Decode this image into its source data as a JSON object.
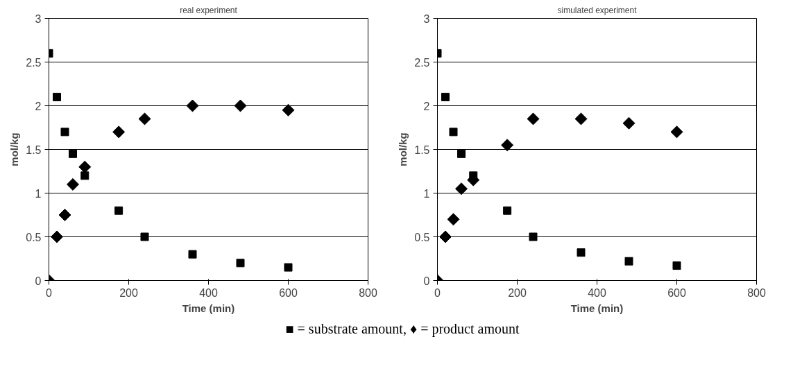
{
  "chart_data": [
    {
      "type": "scatter",
      "title": "real experiment",
      "xlabel": "Time (min)",
      "ylabel": "mol/kg",
      "xlim": [
        0,
        800
      ],
      "xticks": [
        0,
        200,
        400,
        600,
        800
      ],
      "ylim": [
        0,
        3
      ],
      "yticks": [
        0,
        0.5,
        1,
        1.5,
        2,
        2.5,
        3
      ],
      "grid": "y",
      "series": [
        {
          "color": "#000000",
          "marker": "square",
          "x": [
            0,
            20,
            40,
            60,
            90,
            175,
            240,
            360,
            480,
            600
          ],
          "values": [
            2.6,
            2.1,
            1.7,
            1.45,
            1.2,
            0.8,
            0.5,
            0.3,
            0.2,
            0.15
          ]
        },
        {
          "color": "#000000",
          "marker": "diamond",
          "x": [
            0,
            20,
            40,
            60,
            90,
            175,
            240,
            360,
            480,
            600
          ],
          "values": [
            0,
            0.5,
            0.75,
            1.1,
            1.3,
            1.7,
            1.85,
            2,
            2,
            1.95
          ]
        }
      ],
      "annotations": [
        "■ = substrate amount, ♦ = product amount"
      ]
    },
    {
      "type": "scatter",
      "title": "simulated experiment",
      "xlabel": "Time (min)",
      "ylabel": "mol/kg",
      "xlim": [
        0,
        800
      ],
      "xticks": [
        0,
        200,
        400,
        600,
        800
      ],
      "ylim": [
        0,
        3
      ],
      "yticks": [
        0,
        0.5,
        1,
        1.5,
        2,
        2.5,
        3
      ],
      "grid": "y",
      "series": [
        {
          "color": "#000000",
          "marker": "square",
          "x": [
            0,
            20,
            40,
            60,
            90,
            175,
            240,
            360,
            480,
            600
          ],
          "values": [
            2.6,
            2.1,
            1.7,
            1.45,
            1.2,
            0.8,
            0.5,
            0.32,
            0.22,
            0.17
          ]
        },
        {
          "color": "#000000",
          "marker": "diamond",
          "x": [
            0,
            20,
            40,
            60,
            90,
            175,
            240,
            360,
            480,
            600
          ],
          "values": [
            0,
            0.5,
            0.7,
            1.05,
            1.15,
            1.55,
            1.85,
            1.85,
            1.8,
            1.7
          ]
        }
      ]
    }
  ]
}
